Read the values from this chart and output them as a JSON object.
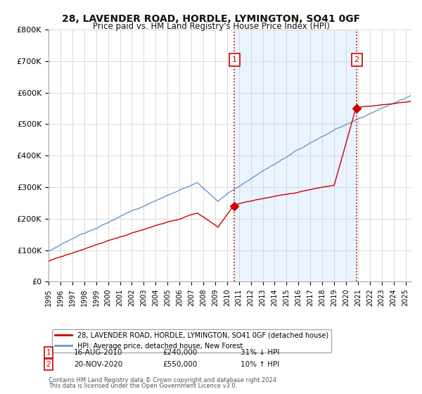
{
  "title": "28, LAVENDER ROAD, HORDLE, LYMINGTON, SO41 0GF",
  "subtitle": "Price paid vs. HM Land Registry's House Price Index (HPI)",
  "ylabel_ticks": [
    "£0",
    "£100K",
    "£200K",
    "£300K",
    "£400K",
    "£500K",
    "£600K",
    "£700K",
    "£800K"
  ],
  "ytick_values": [
    0,
    100000,
    200000,
    300000,
    400000,
    500000,
    600000,
    700000,
    800000
  ],
  "ylim": [
    0,
    800000
  ],
  "xlim_start": 1995.0,
  "xlim_end": 2025.5,
  "marker1_x": 2010.625,
  "marker1_y": 240000,
  "marker1_label": "1",
  "marker1_date": "16-AUG-2010",
  "marker1_price": "£240,000",
  "marker1_hpi": "31% ↓ HPI",
  "marker2_x": 2020.9,
  "marker2_y": 550000,
  "marker2_label": "2",
  "marker2_date": "20-NOV-2020",
  "marker2_price": "£550,000",
  "marker2_hpi": "10% ↑ HPI",
  "red_line_color": "#cc0000",
  "blue_line_color": "#6699cc",
  "shade_color": "#ddeeff",
  "marker_box_color": "#cc0000",
  "dashed_line_color": "#cc0000",
  "legend_label_red": "28, LAVENDER ROAD, HORDLE, LYMINGTON, SO41 0GF (detached house)",
  "legend_label_blue": "HPI: Average price, detached house, New Forest",
  "footer1": "Contains HM Land Registry data © Crown copyright and database right 2024.",
  "footer2": "This data is licensed under the Open Government Licence v3.0.",
  "background_color": "#ffffff",
  "grid_color": "#cccccc"
}
